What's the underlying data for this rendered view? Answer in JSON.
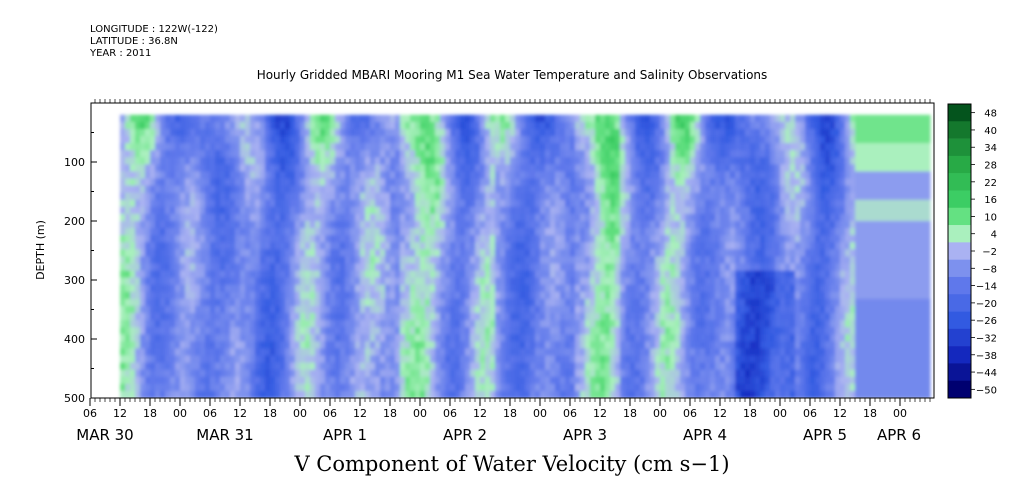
{
  "header": {
    "longitude": "LONGITUDE : 122W(-122)",
    "latitude": "LATITUDE : 36.8N",
    "year": "YEAR : 2011"
  },
  "chart_data": {
    "type": "heatmap",
    "title": "Hourly Gridded MBARI Mooring M1 Sea Water Temperature and Salinity Observations",
    "xlabel": "",
    "ylabel": "DEPTH (m)",
    "variable_label": "V Component of Water Velocity (cm s−1)",
    "y_axis": {
      "range": [
        0,
        500
      ],
      "inverted": true,
      "ticks": [
        {
          "value": 100,
          "label": "100"
        },
        {
          "value": 200,
          "label": "200"
        },
        {
          "value": 300,
          "label": "300"
        },
        {
          "value": 400,
          "label": "400"
        },
        {
          "value": 500,
          "label": "500"
        }
      ]
    },
    "x_axis": {
      "unit": "hours",
      "hour_tick_labels": [
        "06",
        "12",
        "18",
        "00",
        "06",
        "12",
        "18",
        "00",
        "06",
        "12",
        "18",
        "00",
        "06",
        "12",
        "18",
        "00",
        "06",
        "12",
        "18",
        "00",
        "06",
        "12",
        "18",
        "00",
        "06",
        "12",
        "18",
        "00"
      ],
      "date_labels": [
        "MAR 30",
        "MAR 31",
        "APR  1",
        "APR  2",
        "APR  3",
        "APR  4",
        "APR  5",
        "APR  6"
      ]
    },
    "colorbar": {
      "labels": [
        "48",
        "40",
        "34",
        "28",
        "22",
        "16",
        "10",
        "4",
        "−2",
        "−8",
        "−14",
        "−20",
        "−26",
        "−32",
        "−38",
        "−44",
        "−50"
      ],
      "range": [
        -50,
        50
      ]
    },
    "data_summary": {
      "data_start_hour": "MAR 30 12",
      "data_end_hour": "APR 6 06",
      "depth_range": [
        20,
        490
      ],
      "grid_on": false
    }
  }
}
